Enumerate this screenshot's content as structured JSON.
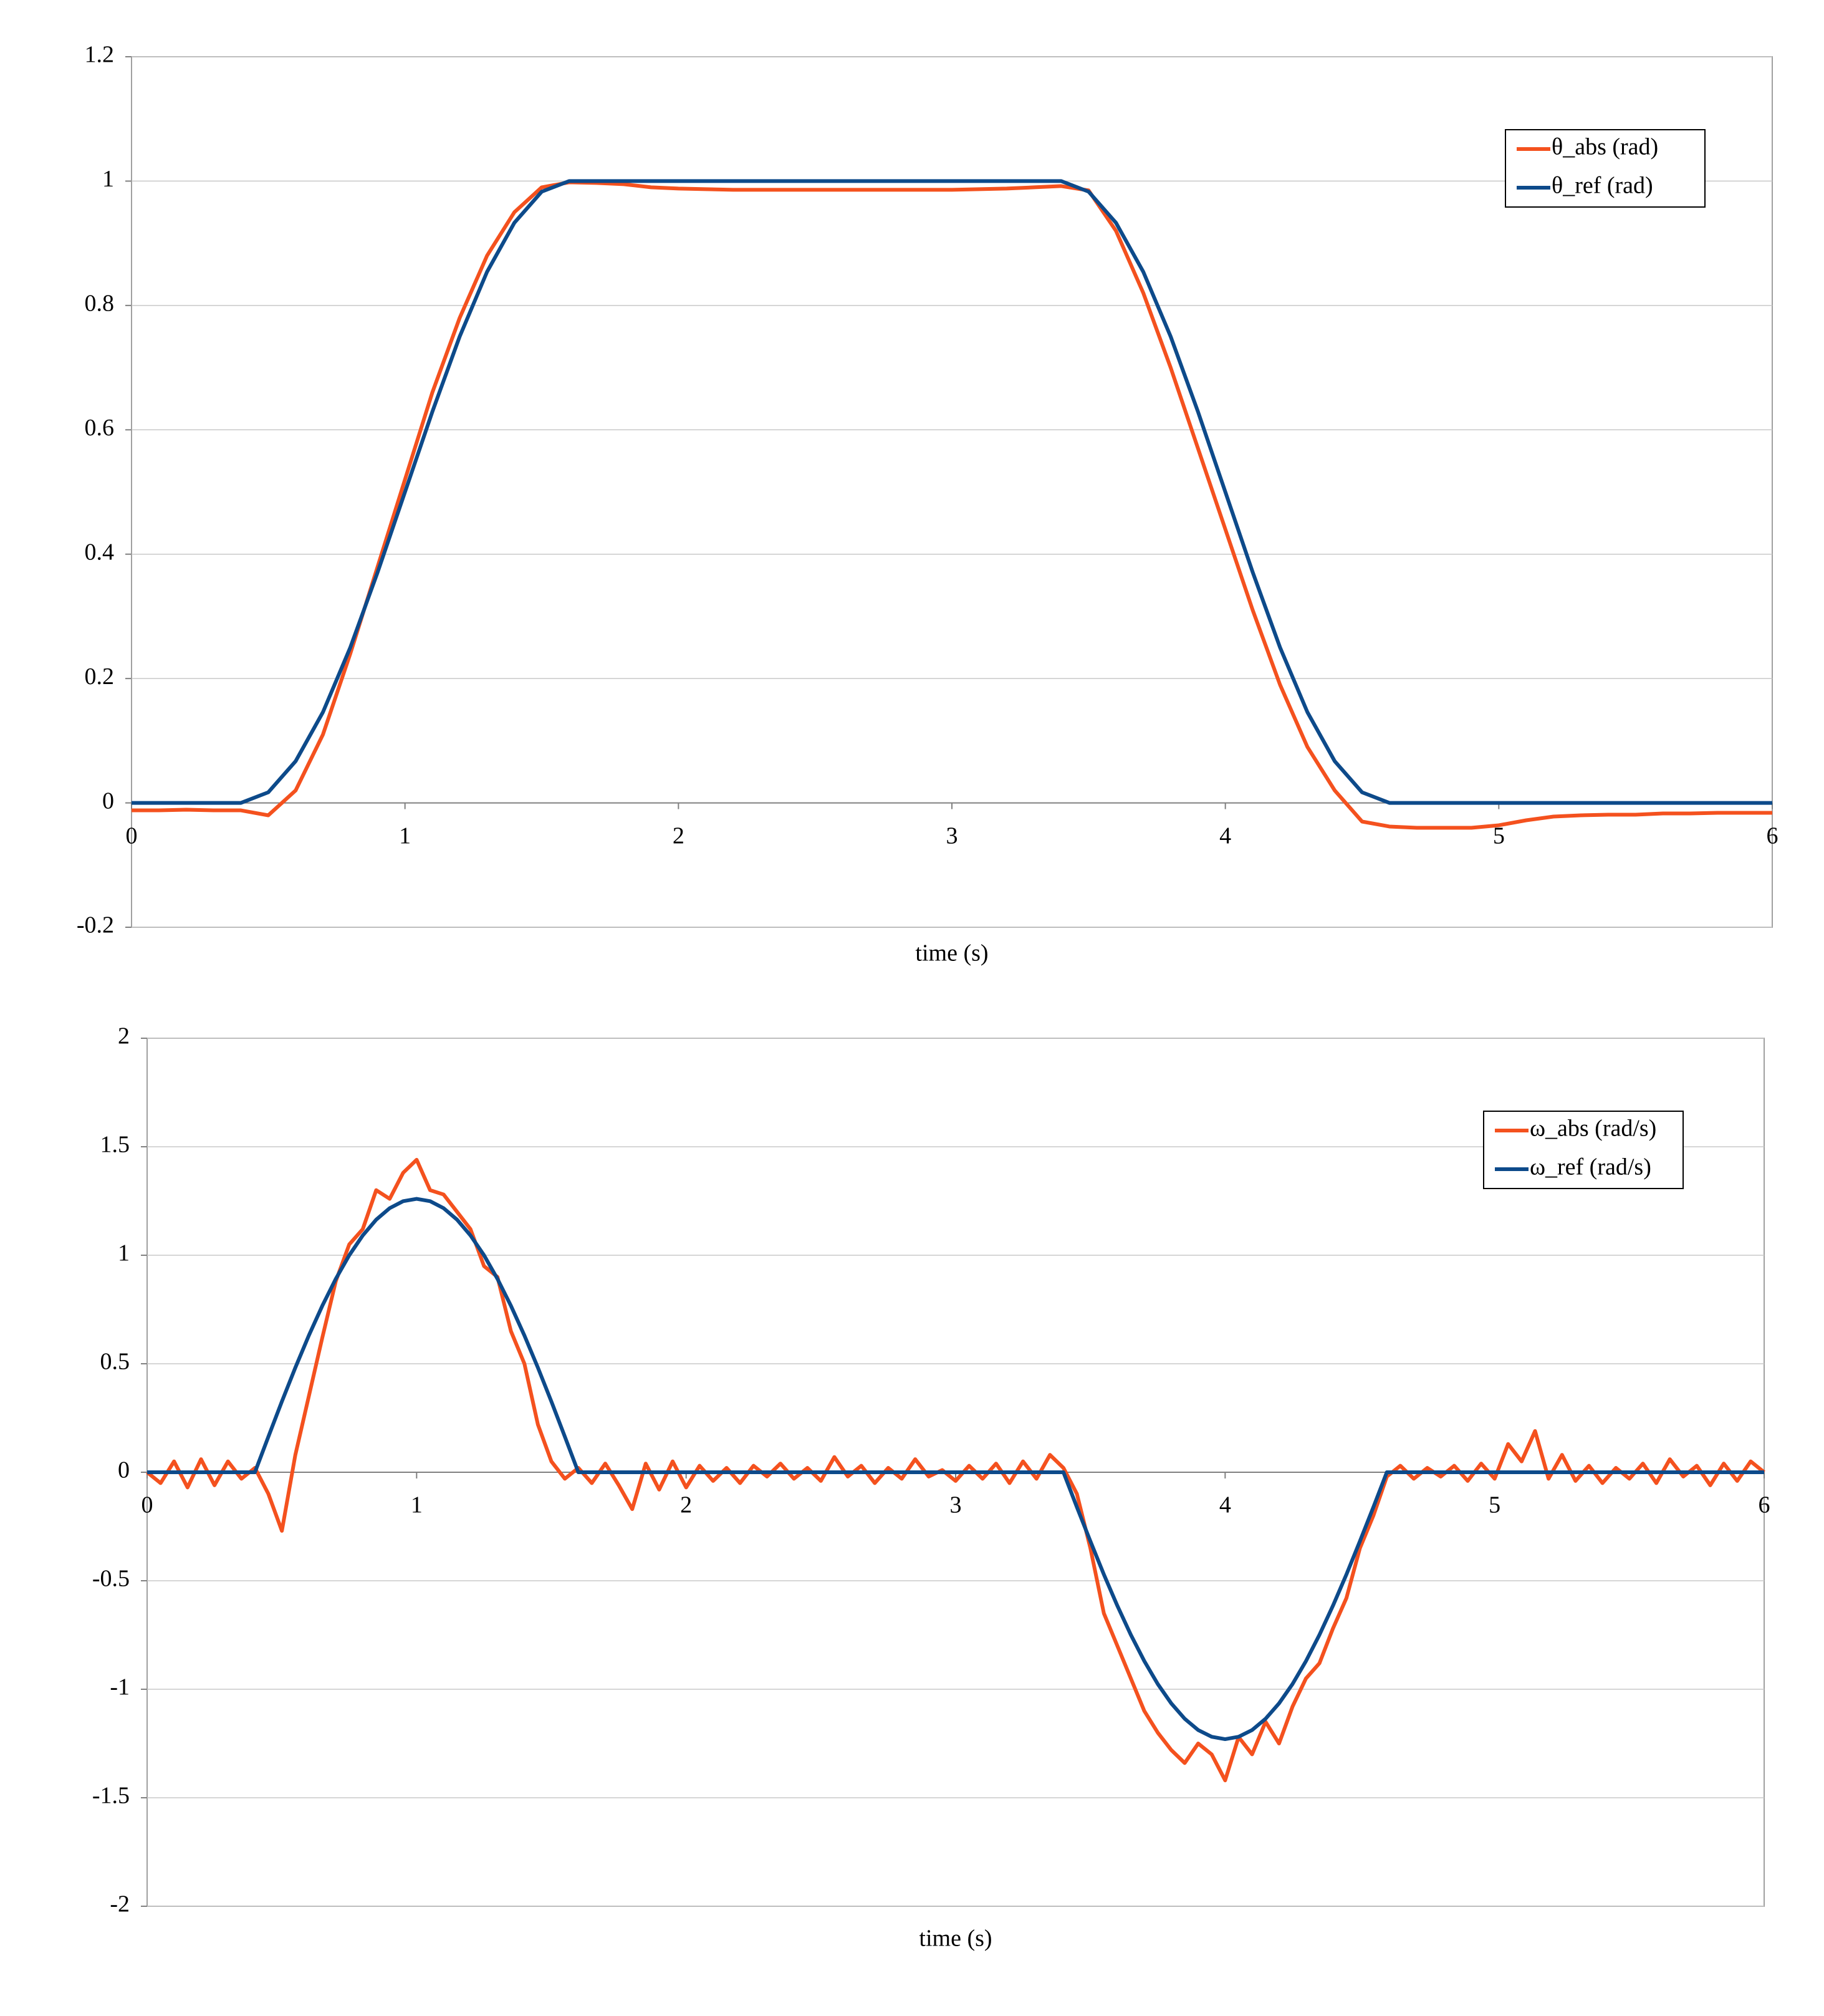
{
  "chart_data": [
    {
      "type": "line",
      "xlabel": "time (s)",
      "legend": "upper right",
      "grid": true,
      "xlim": [
        0,
        6
      ],
      "xticks": [
        0,
        1,
        2,
        3,
        4,
        5,
        6
      ],
      "ylim": [
        -0.2,
        1.2
      ],
      "yticks": [
        -0.2,
        0,
        0.2,
        0.4,
        0.6,
        0.8,
        1,
        1.2
      ],
      "x": [
        0,
        0.1,
        0.2,
        0.3,
        0.4,
        0.5,
        0.6,
        0.7,
        0.8,
        0.9,
        1,
        1.1,
        1.2,
        1.3,
        1.4,
        1.5,
        1.6,
        1.7,
        1.8,
        1.9,
        2,
        2.1,
        2.2,
        2.3,
        2.4,
        2.5,
        2.6,
        2.7,
        2.8,
        2.9,
        3,
        3.1,
        3.2,
        3.3,
        3.4,
        3.5,
        3.6,
        3.7,
        3.8,
        3.9,
        4,
        4.1,
        4.2,
        4.3,
        4.4,
        4.5,
        4.6,
        4.7,
        4.8,
        4.9,
        5,
        5.1,
        5.2,
        5.3,
        5.4,
        5.5,
        5.6,
        5.7,
        5.8,
        5.9,
        6
      ],
      "series": [
        {
          "name": "θ_abs (rad)",
          "color": "#f4511e",
          "values": [
            -0.012,
            -0.012,
            -0.011,
            -0.012,
            -0.012,
            -0.02,
            0.02,
            0.11,
            0.24,
            0.38,
            0.52,
            0.66,
            0.78,
            0.88,
            0.95,
            0.99,
            0.998,
            0.997,
            0.995,
            0.99,
            0.988,
            0.987,
            0.986,
            0.986,
            0.986,
            0.986,
            0.986,
            0.986,
            0.986,
            0.986,
            0.986,
            0.987,
            0.988,
            0.99,
            0.992,
            0.985,
            0.92,
            0.82,
            0.7,
            0.57,
            0.44,
            0.31,
            0.19,
            0.09,
            0.02,
            -0.03,
            -0.038,
            -0.04,
            -0.04,
            -0.04,
            -0.036,
            -0.028,
            -0.022,
            -0.02,
            -0.019,
            -0.019,
            -0.017,
            -0.017,
            -0.016,
            -0.016,
            -0.016
          ]
        },
        {
          "name": "θ_ref (rad)",
          "color": "#0d4a8a",
          "values": [
            0,
            0,
            0,
            0,
            0,
            0.017,
            0.067,
            0.146,
            0.25,
            0.371,
            0.5,
            0.629,
            0.75,
            0.854,
            0.933,
            0.983,
            1,
            1,
            1,
            1,
            1,
            1,
            1,
            1,
            1,
            1,
            1,
            1,
            1,
            1,
            1,
            1,
            1,
            1,
            1,
            0.983,
            0.933,
            0.854,
            0.75,
            0.629,
            0.5,
            0.371,
            0.25,
            0.146,
            0.067,
            0.017,
            0,
            0,
            0,
            0,
            0,
            0,
            0,
            0,
            0,
            0,
            0,
            0,
            0,
            0,
            0
          ]
        }
      ]
    },
    {
      "type": "line",
      "xlabel": "time (s)",
      "legend": "upper right",
      "grid": true,
      "xlim": [
        0,
        6
      ],
      "xticks": [
        0,
        1,
        2,
        3,
        4,
        5,
        6
      ],
      "ylim": [
        -2,
        2
      ],
      "yticks": [
        -2,
        -1.5,
        -1,
        -0.5,
        0,
        0.5,
        1,
        1.5,
        2
      ],
      "x": [
        0,
        0.05,
        0.1,
        0.15,
        0.2,
        0.25,
        0.3,
        0.35,
        0.4,
        0.45,
        0.5,
        0.55,
        0.6,
        0.65,
        0.7,
        0.75,
        0.8,
        0.85,
        0.9,
        0.95,
        1,
        1.05,
        1.1,
        1.15,
        1.2,
        1.25,
        1.3,
        1.35,
        1.4,
        1.45,
        1.5,
        1.55,
        1.6,
        1.65,
        1.7,
        1.75,
        1.8,
        1.85,
        1.9,
        1.95,
        2,
        2.05,
        2.1,
        2.15,
        2.2,
        2.25,
        2.3,
        2.35,
        2.4,
        2.45,
        2.5,
        2.55,
        2.6,
        2.65,
        2.7,
        2.75,
        2.8,
        2.85,
        2.9,
        2.95,
        3,
        3.05,
        3.1,
        3.15,
        3.2,
        3.25,
        3.3,
        3.35,
        3.4,
        3.45,
        3.5,
        3.55,
        3.6,
        3.65,
        3.7,
        3.75,
        3.8,
        3.85,
        3.9,
        3.95,
        4,
        4.05,
        4.1,
        4.15,
        4.2,
        4.25,
        4.3,
        4.35,
        4.4,
        4.45,
        4.5,
        4.55,
        4.6,
        4.65,
        4.7,
        4.75,
        4.8,
        4.85,
        4.9,
        4.95,
        5,
        5.05,
        5.1,
        5.15,
        5.2,
        5.25,
        5.3,
        5.35,
        5.4,
        5.45,
        5.5,
        5.55,
        5.6,
        5.65,
        5.7,
        5.75,
        5.8,
        5.85,
        5.9,
        5.95,
        6
      ],
      "series": [
        {
          "name": "ω_abs (rad/s)",
          "color": "#f4511e",
          "values": [
            0,
            -0.05,
            0.05,
            -0.07,
            0.06,
            -0.06,
            0.05,
            -0.03,
            0.02,
            -0.1,
            -0.27,
            0.08,
            0.35,
            0.62,
            0.88,
            1.05,
            1.12,
            1.3,
            1.26,
            1.38,
            1.44,
            1.3,
            1.28,
            1.2,
            1.12,
            0.95,
            0.9,
            0.65,
            0.5,
            0.22,
            0.05,
            -0.03,
            0.02,
            -0.05,
            0.04,
            -0.06,
            -0.17,
            0.04,
            -0.08,
            0.05,
            -0.07,
            0.03,
            -0.04,
            0.02,
            -0.05,
            0.03,
            -0.02,
            0.04,
            -0.03,
            0.02,
            -0.04,
            0.07,
            -0.02,
            0.03,
            -0.05,
            0.02,
            -0.03,
            0.06,
            -0.02,
            0.01,
            -0.04,
            0.03,
            -0.03,
            0.04,
            -0.05,
            0.05,
            -0.03,
            0.08,
            0.02,
            -0.1,
            -0.35,
            -0.65,
            -0.8,
            -0.95,
            -1.1,
            -1.2,
            -1.28,
            -1.34,
            -1.25,
            -1.3,
            -1.42,
            -1.22,
            -1.3,
            -1.15,
            -1.25,
            -1.08,
            -0.95,
            -0.88,
            -0.72,
            -0.58,
            -0.35,
            -0.2,
            -0.02,
            0.03,
            -0.03,
            0.02,
            -0.02,
            0.03,
            -0.04,
            0.04,
            -0.03,
            0.13,
            0.05,
            0.19,
            -0.03,
            0.08,
            -0.04,
            0.03,
            -0.05,
            0.02,
            -0.03,
            0.04,
            -0.05,
            0.06,
            -0.02,
            0.03,
            -0.06,
            0.04,
            -0.04,
            0.05,
            0
          ]
        },
        {
          "name": "ω_ref (rad/s)",
          "color": "#0d4a8a",
          "values": [
            0,
            0,
            0,
            0,
            0,
            0,
            0,
            0,
            0,
            0.164,
            0.326,
            0.482,
            0.63,
            0.767,
            0.891,
            1.0,
            1.091,
            1.164,
            1.217,
            1.249,
            1.26,
            1.249,
            1.217,
            1.164,
            1.091,
            1.0,
            0.891,
            0.767,
            0.63,
            0.482,
            0.326,
            0.164,
            0,
            0,
            0,
            0,
            0,
            0,
            0,
            0,
            0,
            0,
            0,
            0,
            0,
            0,
            0,
            0,
            0,
            0,
            0,
            0,
            0,
            0,
            0,
            0,
            0,
            0,
            0,
            0,
            0,
            0,
            0,
            0,
            0,
            0,
            0,
            0,
            0,
            -0.161,
            -0.318,
            -0.471,
            -0.615,
            -0.749,
            -0.87,
            -0.976,
            -1.065,
            -1.136,
            -1.188,
            -1.219,
            -1.23,
            -1.219,
            -1.188,
            -1.136,
            -1.065,
            -0.976,
            -0.87,
            -0.749,
            -0.615,
            -0.471,
            -0.318,
            -0.161,
            0,
            0,
            0,
            0,
            0,
            0,
            0,
            0,
            0,
            0,
            0,
            0,
            0,
            0,
            0,
            0,
            0,
            0,
            0,
            0,
            0,
            0,
            0,
            0,
            0,
            0,
            0,
            0,
            0
          ]
        }
      ]
    }
  ]
}
